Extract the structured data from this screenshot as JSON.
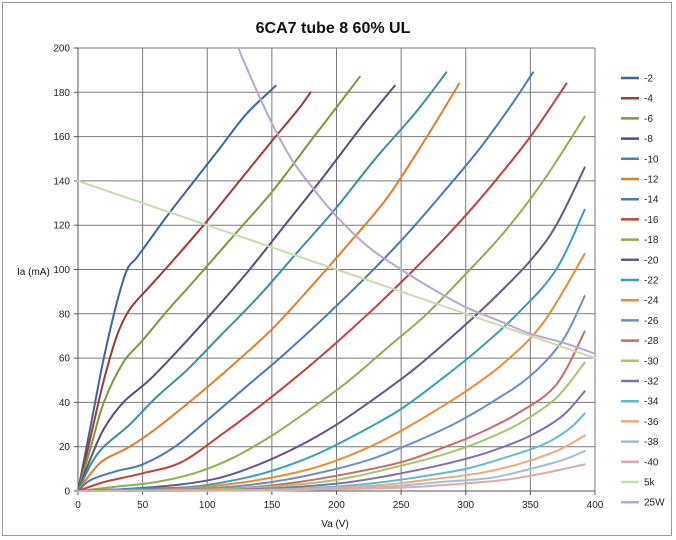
{
  "chart_data": {
    "type": "line",
    "title": "6CA7 tube 8 60% UL",
    "xlabel": "Va (V)",
    "ylabel": "Ia (mA)",
    "xlim": [
      0,
      400
    ],
    "ylim": [
      0,
      200
    ],
    "xticks": [
      0,
      50,
      100,
      150,
      200,
      250,
      300,
      350,
      400
    ],
    "yticks": [
      0,
      20,
      40,
      60,
      80,
      100,
      120,
      140,
      160,
      180,
      200
    ],
    "grid": true,
    "legend_position": "right",
    "series": [
      {
        "name": "-2",
        "color": "#3c64a0",
        "x": [
          0,
          10,
          20,
          30,
          38,
          45,
          55,
          70,
          90,
          110,
          130,
          153
        ],
        "y": [
          0,
          30,
          60,
          85,
          100,
          105,
          113,
          125,
          140,
          155,
          170,
          183
        ]
      },
      {
        "name": "-4",
        "color": "#a13a36",
        "x": [
          0,
          10,
          20,
          30,
          40,
          55,
          75,
          100,
          125,
          150,
          170,
          180
        ],
        "y": [
          0,
          25,
          50,
          70,
          82,
          92,
          105,
          122,
          140,
          158,
          172,
          180
        ]
      },
      {
        "name": "-6",
        "color": "#7a9a3a",
        "x": [
          0,
          10,
          20,
          35,
          50,
          70,
          90,
          120,
          150,
          180,
          205,
          218
        ],
        "y": [
          0,
          20,
          40,
          58,
          68,
          82,
          95,
          115,
          135,
          158,
          177,
          187
        ]
      },
      {
        "name": "-8",
        "color": "#5e4a80",
        "x": [
          0,
          10,
          20,
          35,
          55,
          75,
          100,
          130,
          160,
          190,
          220,
          245
        ],
        "y": [
          0,
          15,
          28,
          40,
          50,
          62,
          78,
          98,
          120,
          142,
          165,
          183
        ]
      },
      {
        "name": "-10",
        "color": "#3a8ea6",
        "x": [
          0,
          10,
          20,
          40,
          60,
          85,
          110,
          140,
          170,
          200,
          230,
          260,
          285
        ],
        "y": [
          0,
          12,
          20,
          30,
          42,
          55,
          70,
          88,
          108,
          128,
          150,
          170,
          189
        ]
      },
      {
        "name": "-12",
        "color": "#e27d29",
        "x": [
          0,
          10,
          20,
          40,
          60,
          90,
          120,
          150,
          180,
          210,
          240,
          270,
          295
        ],
        "y": [
          0,
          8,
          14,
          20,
          28,
          42,
          57,
          73,
          92,
          112,
          133,
          160,
          184
        ]
      },
      {
        "name": "-14",
        "color": "#4a78b4",
        "x": [
          0,
          10,
          30,
          50,
          75,
          100,
          130,
          160,
          190,
          220,
          250,
          280,
          310,
          335,
          352
        ],
        "y": [
          0,
          5,
          9,
          12,
          20,
          32,
          47,
          62,
          78,
          95,
          113,
          133,
          154,
          174,
          189
        ]
      },
      {
        "name": "-16",
        "color": "#c0423e",
        "x": [
          0,
          20,
          50,
          80,
          110,
          140,
          170,
          200,
          230,
          260,
          290,
          320,
          350,
          378
        ],
        "y": [
          0,
          4,
          8,
          13,
          25,
          38,
          52,
          67,
          83,
          100,
          118,
          138,
          160,
          184
        ]
      },
      {
        "name": "-18",
        "color": "#8eb04a",
        "x": [
          0,
          30,
          60,
          90,
          120,
          150,
          180,
          210,
          240,
          270,
          300,
          330,
          360,
          392
        ],
        "y": [
          0,
          2,
          4,
          8,
          15,
          25,
          37,
          50,
          65,
          80,
          98,
          117,
          140,
          169
        ]
      },
      {
        "name": "-20",
        "color": "#6a548c",
        "x": [
          0,
          40,
          80,
          110,
          140,
          170,
          200,
          230,
          260,
          290,
          320,
          350,
          370,
          392
        ],
        "y": [
          0,
          1,
          3,
          6,
          12,
          20,
          30,
          42,
          55,
          70,
          86,
          104,
          120,
          146
        ]
      },
      {
        "name": "-22",
        "color": "#35a0b6",
        "x": [
          0,
          50,
          90,
          130,
          160,
          190,
          220,
          250,
          280,
          310,
          340,
          370,
          392
        ],
        "y": [
          0,
          1,
          2,
          6,
          11,
          18,
          27,
          37,
          50,
          64,
          80,
          100,
          127
        ]
      },
      {
        "name": "-24",
        "color": "#f08a34",
        "x": [
          0,
          60,
          100,
          140,
          180,
          210,
          240,
          270,
          300,
          330,
          360,
          392
        ],
        "y": [
          0,
          0.5,
          2,
          5,
          10,
          16,
          24,
          34,
          45,
          58,
          76,
          107
        ]
      },
      {
        "name": "-26",
        "color": "#6a90c8",
        "x": [
          0,
          70,
          120,
          160,
          200,
          230,
          260,
          290,
          320,
          350,
          375,
          392
        ],
        "y": [
          0,
          0.5,
          2,
          5,
          10,
          15,
          22,
          30,
          40,
          52,
          68,
          88
        ]
      },
      {
        "name": "-28",
        "color": "#cc6a68",
        "x": [
          0,
          80,
          130,
          170,
          210,
          250,
          280,
          310,
          340,
          370,
          392
        ],
        "y": [
          0,
          0.5,
          1.5,
          4,
          8,
          13,
          19,
          26,
          35,
          48,
          72
        ]
      },
      {
        "name": "-30",
        "color": "#a6c46a",
        "x": [
          0,
          90,
          150,
          200,
          240,
          280,
          310,
          340,
          370,
          392
        ],
        "y": [
          0,
          0.5,
          2,
          5,
          10,
          16,
          22,
          30,
          42,
          58
        ]
      },
      {
        "name": "-32",
        "color": "#8470a8",
        "x": [
          0,
          100,
          160,
          210,
          250,
          290,
          320,
          350,
          375,
          392
        ],
        "y": [
          0,
          0.3,
          1.5,
          4,
          8,
          13,
          18,
          25,
          34,
          45
        ]
      },
      {
        "name": "-34",
        "color": "#5ebcd0",
        "x": [
          0,
          110,
          170,
          220,
          260,
          300,
          330,
          360,
          380,
          392
        ],
        "y": [
          0,
          0.3,
          1,
          3,
          6,
          10,
          15,
          21,
          28,
          35
        ]
      },
      {
        "name": "-36",
        "color": "#f4a878",
        "x": [
          0,
          120,
          180,
          230,
          270,
          310,
          340,
          370,
          392
        ],
        "y": [
          0,
          0.3,
          1,
          2.5,
          5,
          8,
          12,
          18,
          25
        ]
      },
      {
        "name": "-38",
        "color": "#a6bcdc",
        "x": [
          0,
          130,
          190,
          240,
          280,
          320,
          350,
          375,
          392
        ],
        "y": [
          0,
          0.3,
          1,
          2,
          4,
          6,
          10,
          14,
          18
        ]
      },
      {
        "name": "-40",
        "color": "#e0aaa8",
        "x": [
          0,
          140,
          200,
          250,
          290,
          330,
          360,
          392
        ],
        "y": [
          0,
          0.2,
          0.8,
          1.5,
          3,
          5,
          8,
          12
        ]
      },
      {
        "name": "5k",
        "color": "#c8dcb0",
        "x": [
          0,
          400
        ],
        "y": [
          140,
          60
        ]
      },
      {
        "name": "25W",
        "color": "#b8a8d0",
        "x": [
          124,
          135,
          150,
          165,
          180,
          200,
          225,
          250,
          275,
          300,
          325,
          350,
          375,
          400
        ],
        "y": [
          200,
          185,
          166,
          150,
          138,
          124,
          110,
          100,
          91,
          83,
          77,
          71,
          67,
          62
        ]
      }
    ]
  }
}
